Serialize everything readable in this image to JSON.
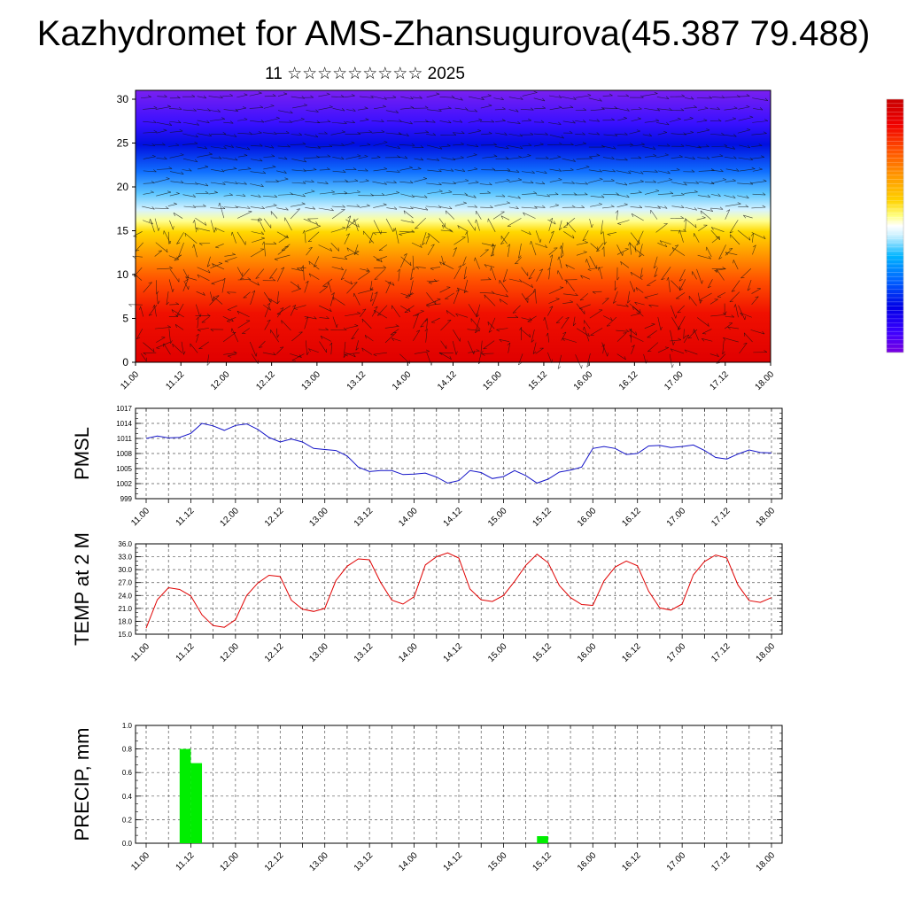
{
  "header": {
    "title": "Kazhydromet for AMS-Zhansugurova(45.387 79.488)",
    "subtitle": "11 ☆☆☆☆☆☆☆☆☆ 2025"
  },
  "colors": {
    "pmsl_line": "#1414c8",
    "temp_line": "#e00000",
    "precip_bar": "#00ee00",
    "grid": "#555555"
  },
  "chart_data": [
    {
      "id": "cross-section",
      "type": "heatmap",
      "x_labels": [
        "11.00",
        "11.12",
        "12.00",
        "12.12",
        "13.00",
        "13.12",
        "14.00",
        "14.12",
        "15.00",
        "15.12",
        "16.00",
        "16.12",
        "17.00",
        "17.12",
        "18.00"
      ],
      "ylim": [
        0,
        30
      ],
      "y_ticks": [
        0,
        5,
        10,
        15,
        20,
        25,
        30
      ],
      "colorbar": [
        "#7a00e0",
        "#3c00ff",
        "#0000e6",
        "#0060ff",
        "#00b4ff",
        "#c8f0ff",
        "#ffff80",
        "#ffd200",
        "#ff9600",
        "#ff5000",
        "#f00000",
        "#c80000"
      ],
      "overlay": "wind vectors"
    },
    {
      "id": "pmsl",
      "type": "line",
      "ylabel": "PMSL",
      "ylim": [
        999,
        1017
      ],
      "y_ticks": [
        999,
        1002,
        1005,
        1008,
        1011,
        1014,
        1017
      ],
      "x_labels": [
        "11.00",
        "11.12",
        "12.00",
        "12.12",
        "13.00",
        "13.12",
        "14.00",
        "14.12",
        "15.00",
        "15.12",
        "16.00",
        "16.12",
        "17.00",
        "17.12",
        "18.00"
      ],
      "x_unit": "hours from 11.00",
      "series": [
        {
          "x": [
            0,
            3,
            6,
            9,
            12,
            15,
            18,
            21,
            24,
            27,
            30,
            33,
            36,
            39,
            42,
            45,
            48,
            51,
            54,
            57,
            60,
            63,
            66,
            69,
            72,
            75,
            78,
            81,
            84,
            87,
            90,
            93,
            96,
            99,
            102,
            105,
            108,
            111,
            114,
            117,
            120,
            123,
            126,
            129,
            132,
            135,
            138,
            141,
            144,
            147,
            150,
            153,
            156,
            159,
            162,
            165,
            168
          ],
          "values": [
            1011.0,
            1011.5,
            1011.1,
            1011.2,
            1012.0,
            1014.0,
            1013.5,
            1012.6,
            1013.6,
            1013.9,
            1012.8,
            1011.2,
            1010.3,
            1010.9,
            1010.3,
            1009.0,
            1008.8,
            1008.6,
            1007.5,
            1005.3,
            1004.4,
            1004.6,
            1004.6,
            1003.8,
            1003.9,
            1004.1,
            1003.3,
            1002.1,
            1002.6,
            1004.6,
            1004.2,
            1003.0,
            1003.4,
            1004.6,
            1003.6,
            1002.1,
            1002.9,
            1004.3,
            1004.7,
            1005.3,
            1009.0,
            1009.4,
            1009.0,
            1007.8,
            1008.0,
            1009.5,
            1009.6,
            1009.2,
            1009.4,
            1009.7,
            1008.6,
            1007.2,
            1006.9,
            1007.9,
            1008.7,
            1008.2,
            1008.1
          ]
        }
      ]
    },
    {
      "id": "temp",
      "type": "line",
      "ylabel": "TEMP at 2 M",
      "ylim": [
        15,
        36
      ],
      "y_ticks": [
        "15.0",
        "18.0",
        "21.0",
        "24.0",
        "27.0",
        "30.0",
        "33.0",
        "36.0"
      ],
      "x_labels": [
        "11.00",
        "11.12",
        "12.00",
        "12.12",
        "13.00",
        "13.12",
        "14.00",
        "14.12",
        "15.00",
        "15.12",
        "16.00",
        "16.12",
        "17.00",
        "17.12",
        "18.00"
      ],
      "x_unit": "hours from 11.00",
      "series": [
        {
          "x": [
            0,
            3,
            6,
            9,
            12,
            15,
            18,
            21,
            24,
            27,
            30,
            33,
            36,
            39,
            42,
            45,
            48,
            51,
            54,
            57,
            60,
            63,
            66,
            69,
            72,
            75,
            78,
            81,
            84,
            87,
            90,
            93,
            96,
            99,
            102,
            105,
            108,
            111,
            114,
            117,
            120,
            123,
            126,
            129,
            132,
            135,
            138,
            141,
            144,
            147,
            150,
            153,
            156,
            159,
            162,
            165,
            168
          ],
          "values": [
            16.4,
            23.0,
            25.8,
            25.4,
            23.9,
            19.5,
            17.0,
            16.6,
            18.4,
            24.0,
            26.9,
            28.7,
            28.4,
            22.9,
            20.8,
            20.3,
            21.0,
            27.5,
            30.8,
            32.5,
            32.3,
            27.0,
            22.9,
            22.0,
            23.7,
            31.1,
            33.0,
            33.9,
            32.7,
            25.5,
            23.0,
            22.6,
            24.0,
            27.3,
            31.0,
            33.6,
            31.6,
            26.3,
            23.5,
            21.9,
            21.7,
            27.4,
            30.6,
            32.0,
            30.9,
            25.0,
            21.1,
            20.6,
            22.0,
            28.8,
            31.9,
            33.4,
            32.7,
            26.4,
            22.8,
            22.4,
            23.5
          ]
        }
      ]
    },
    {
      "id": "precip",
      "type": "bar",
      "ylabel": "PRECIP, mm",
      "ylim": [
        0,
        1
      ],
      "y_ticks": [
        "0.0",
        "0.2",
        "0.4",
        "0.6",
        "0.8",
        "1.0"
      ],
      "x_labels": [
        "11.00",
        "11.12",
        "12.00",
        "12.12",
        "13.00",
        "13.12",
        "14.00",
        "14.12",
        "15.00",
        "15.12",
        "16.00",
        "16.12",
        "17.00",
        "17.12",
        "18.00"
      ],
      "x_unit": "hours from 11.00",
      "bars": [
        {
          "start": 9,
          "end": 12,
          "value": 0.8
        },
        {
          "start": 12,
          "end": 15,
          "value": 0.68
        },
        {
          "start": 105,
          "end": 108,
          "value": 0.06
        }
      ]
    }
  ]
}
